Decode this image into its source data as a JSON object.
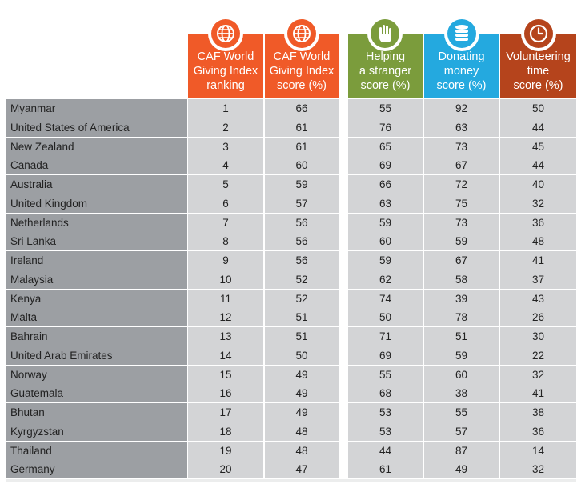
{
  "colors": {
    "ranking": "#f05a28",
    "score": "#f05a28",
    "helping": "#7b9c3c",
    "donating": "#24a9df",
    "volunteering": "#b5441c",
    "name_col_bg": "#9c9fa3",
    "cell_bg": "#d3d4d6",
    "grid_line": "#ffffff"
  },
  "headers": {
    "ranking": [
      "CAF World",
      "Giving Index",
      "ranking"
    ],
    "score": [
      "CAF World",
      "Giving Index",
      "score (%)"
    ],
    "helping": [
      "Helping",
      "a stranger",
      "score (%)"
    ],
    "donating": [
      "Donating",
      "money",
      "score (%)"
    ],
    "volunteering": [
      "Volunteering",
      "time",
      "score (%)"
    ]
  },
  "icons": {
    "ranking": "globe-icon",
    "score": "globe-icon",
    "helping": "raised-hand-icon",
    "donating": "coin-stack-icon",
    "volunteering": "clock-icon"
  },
  "chart_data": {
    "type": "table",
    "columns": [
      "",
      "CAF World Giving Index ranking",
      "CAF World Giving Index score (%)",
      "Helping a stranger score (%)",
      "Donating money score (%)",
      "Volunteering time score (%)"
    ],
    "rows": [
      {
        "country": "Myanmar",
        "rank": 1,
        "score": 66,
        "helping": 55,
        "donating": 92,
        "volunteering": 50
      },
      {
        "country": "United States of America",
        "rank": 2,
        "score": 61,
        "helping": 76,
        "donating": 63,
        "volunteering": 44
      },
      {
        "country": "New Zealand",
        "rank": 3,
        "score": 61,
        "helping": 65,
        "donating": 73,
        "volunteering": 45
      },
      {
        "country": "Canada",
        "rank": 4,
        "score": 60,
        "helping": 69,
        "donating": 67,
        "volunteering": 44
      },
      {
        "country": "Australia",
        "rank": 5,
        "score": 59,
        "helping": 66,
        "donating": 72,
        "volunteering": 40
      },
      {
        "country": "United Kingdom",
        "rank": 6,
        "score": 57,
        "helping": 63,
        "donating": 75,
        "volunteering": 32
      },
      {
        "country": "Netherlands",
        "rank": 7,
        "score": 56,
        "helping": 59,
        "donating": 73,
        "volunteering": 36
      },
      {
        "country": "Sri Lanka",
        "rank": 8,
        "score": 56,
        "helping": 60,
        "donating": 59,
        "volunteering": 48
      },
      {
        "country": "Ireland",
        "rank": 9,
        "score": 56,
        "helping": 59,
        "donating": 67,
        "volunteering": 41
      },
      {
        "country": "Malaysia",
        "rank": 10,
        "score": 52,
        "helping": 62,
        "donating": 58,
        "volunteering": 37
      },
      {
        "country": "Kenya",
        "rank": 11,
        "score": 52,
        "helping": 74,
        "donating": 39,
        "volunteering": 43
      },
      {
        "country": "Malta",
        "rank": 12,
        "score": 51,
        "helping": 50,
        "donating": 78,
        "volunteering": 26
      },
      {
        "country": "Bahrain",
        "rank": 13,
        "score": 51,
        "helping": 71,
        "donating": 51,
        "volunteering": 30
      },
      {
        "country": "United Arab Emirates",
        "rank": 14,
        "score": 50,
        "helping": 69,
        "donating": 59,
        "volunteering": 22
      },
      {
        "country": "Norway",
        "rank": 15,
        "score": 49,
        "helping": 55,
        "donating": 60,
        "volunteering": 32
      },
      {
        "country": "Guatemala",
        "rank": 16,
        "score": 49,
        "helping": 68,
        "donating": 38,
        "volunteering": 41
      },
      {
        "country": "Bhutan",
        "rank": 17,
        "score": 49,
        "helping": 53,
        "donating": 55,
        "volunteering": 38
      },
      {
        "country": "Kyrgyzstan",
        "rank": 18,
        "score": 48,
        "helping": 53,
        "donating": 57,
        "volunteering": 36
      },
      {
        "country": "Thailand",
        "rank": 19,
        "score": 48,
        "helping": 44,
        "donating": 87,
        "volunteering": 14
      },
      {
        "country": "Germany",
        "rank": 20,
        "score": 47,
        "helping": 61,
        "donating": 49,
        "volunteering": 32
      }
    ]
  }
}
